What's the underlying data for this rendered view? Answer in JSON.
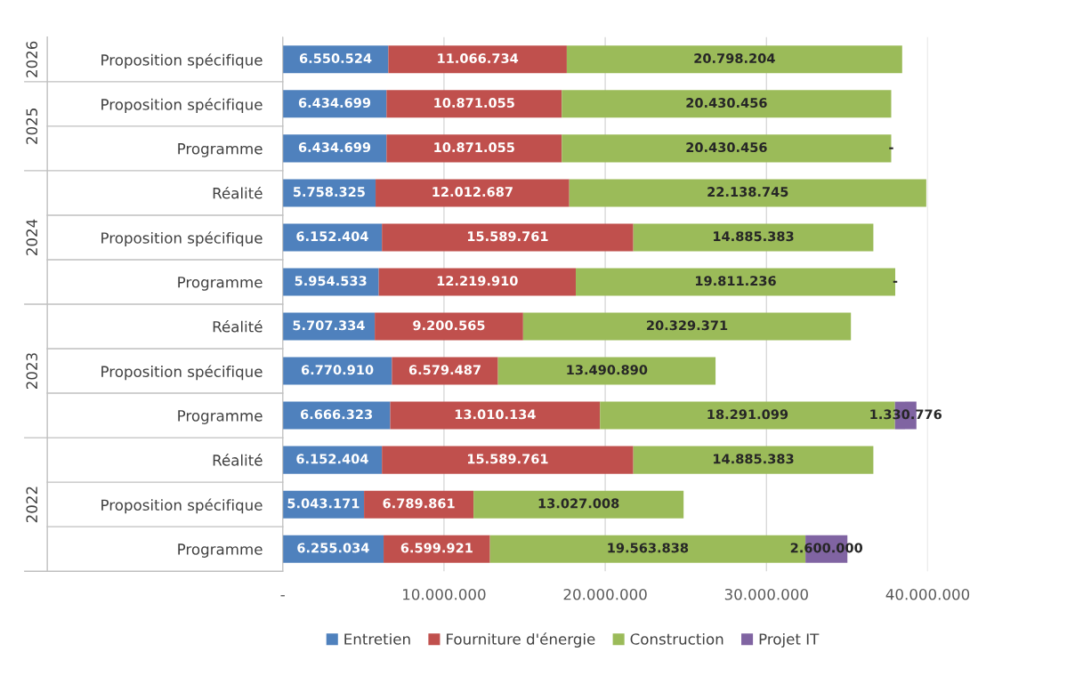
{
  "chart_data": {
    "type": "bar",
    "orientation": "horizontal",
    "stacked": true,
    "categories": [
      "Proposition spécifique",
      "Proposition spécifique",
      "Programme",
      "Réalité",
      "Proposition spécifique",
      "Programme",
      "Réalité",
      "Proposition spécifique",
      "Programme",
      "Réalité",
      "Proposition spécifique",
      "Programme"
    ],
    "series": [
      {
        "name": "Entretien",
        "color": "#4f81bd",
        "values": [
          6550524,
          6434699,
          6434699,
          5758325,
          6152404,
          5954533,
          5707334,
          6770910,
          6666323,
          6152404,
          5043171,
          6255034
        ],
        "value_labels": [
          "6.550.524",
          "6.434.699",
          "6.434.699",
          "5.758.325",
          "6.152.404",
          "5.954.533",
          "5.707.334",
          "6.770.910",
          "6.666.323",
          "6.152.404",
          "5.043.171",
          "6.255.034"
        ]
      },
      {
        "name": "Fourniture d'énergie",
        "color": "#c0504d",
        "values": [
          11066734,
          10871055,
          10871055,
          12012687,
          15589761,
          12219910,
          9200565,
          6579487,
          13010134,
          15589761,
          6789861,
          6599921
        ],
        "value_labels": [
          "11.066.734",
          "10.871.055",
          "10.871.055",
          "12.012.687",
          "15.589.761",
          "12.219.910",
          "9.200.565",
          "6.579.487",
          "13.010.134",
          "15.589.761",
          "6.789.861",
          "6.599.921"
        ]
      },
      {
        "name": "Construction",
        "color": "#9bbb59",
        "values": [
          20798204,
          20430456,
          20430456,
          22138745,
          14885383,
          19811236,
          20329371,
          13490890,
          18291099,
          14885383,
          13027008,
          19563838
        ],
        "value_labels": [
          "20.798.204",
          "20.430.456",
          "20.430.456",
          "22.138.745",
          "14.885.383",
          "19.811.236",
          "20.329.371",
          "13.490.890",
          "18.291.099",
          "14.885.383",
          "13.027.008",
          "19.563.838"
        ]
      },
      {
        "name": "Projet IT",
        "color": "#8064a2",
        "values": [
          null,
          null,
          0,
          null,
          null,
          0,
          null,
          null,
          1330776,
          null,
          null,
          2600000
        ],
        "value_labels": [
          null,
          null,
          "-",
          null,
          null,
          "-",
          null,
          null,
          "1.330.776",
          null,
          null,
          "2.600.000"
        ]
      }
    ],
    "annotations": [
      "2026",
      "2025",
      "2024",
      "2023",
      "2022"
    ],
    "xlim": [
      0,
      40000000
    ],
    "xticks": [
      {
        "value": 0,
        "label": "-"
      },
      {
        "value": 10000000,
        "label": "10.000.000"
      },
      {
        "value": 20000000,
        "label": "20.000.000"
      },
      {
        "value": 30000000,
        "label": "30.000.000"
      },
      {
        "value": 40000000,
        "label": "40.000.000"
      }
    ],
    "grid": "x",
    "legend": "bottom"
  }
}
